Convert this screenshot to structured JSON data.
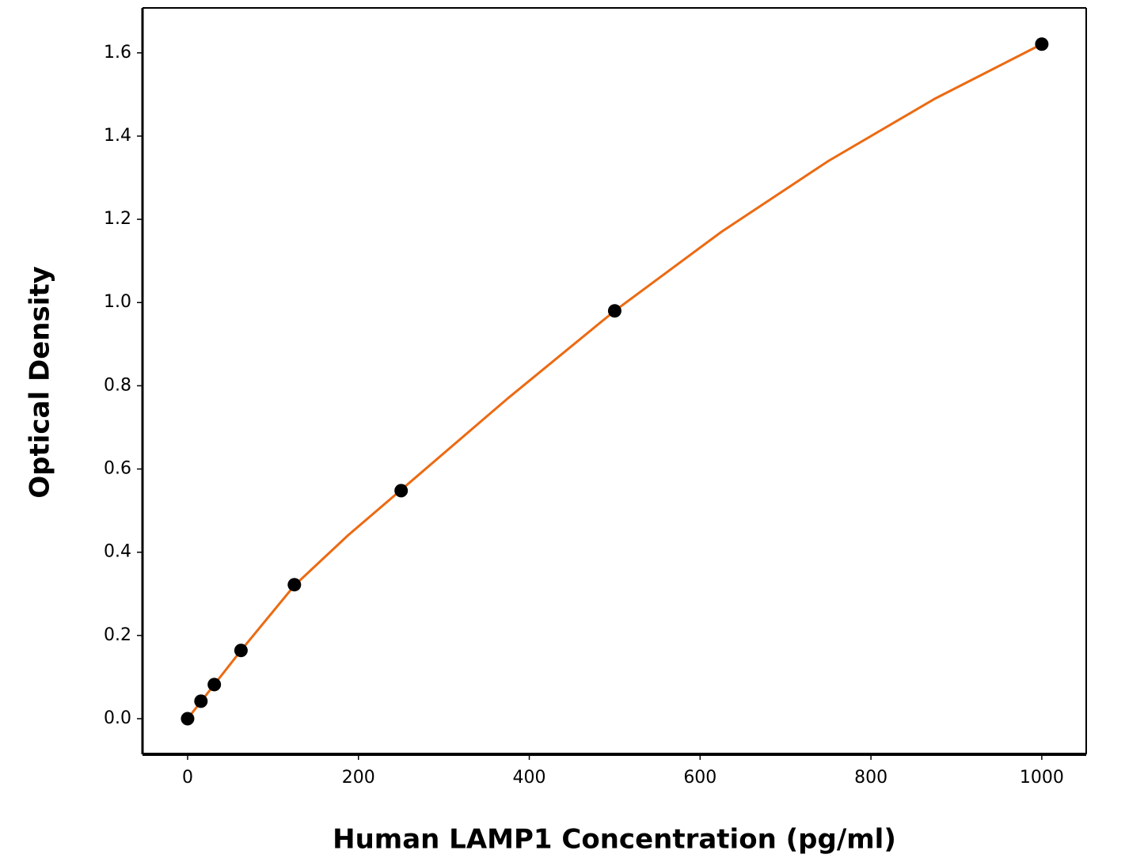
{
  "chart_data": {
    "type": "scatter",
    "x_label": "Human LAMP1 Concentration (pg/ml)",
    "y_label": "Optical Density",
    "series": [
      {
        "x": [
          0,
          15.625,
          31.25,
          62.5,
          125,
          250,
          500,
          1000
        ],
        "values": [
          0.0,
          0.042,
          0.082,
          0.164,
          0.322,
          0.548,
          0.98,
          1.621
        ],
        "color": "#000000"
      }
    ],
    "fit": {
      "x": [
        0,
        31.25,
        62.5,
        125,
        187.5,
        250,
        375,
        500,
        625,
        750,
        875,
        1000
      ],
      "values": [
        0.0,
        0.082,
        0.164,
        0.32,
        0.44,
        0.55,
        0.77,
        0.98,
        1.17,
        1.34,
        1.49,
        1.621
      ],
      "color": "#ec6a12"
    },
    "xlim": [
      -52.8,
      1052
    ],
    "ylim": [
      -0.0856,
      1.708
    ],
    "xticks": [
      0,
      200,
      400,
      600,
      800,
      1000
    ],
    "yticks": [
      {
        "value": 0,
        "label": "0.0"
      },
      0.2,
      0.4,
      0.6,
      0.8,
      {
        "value": 1,
        "label": "1.0"
      },
      1.2,
      1.4,
      1.6
    ]
  }
}
